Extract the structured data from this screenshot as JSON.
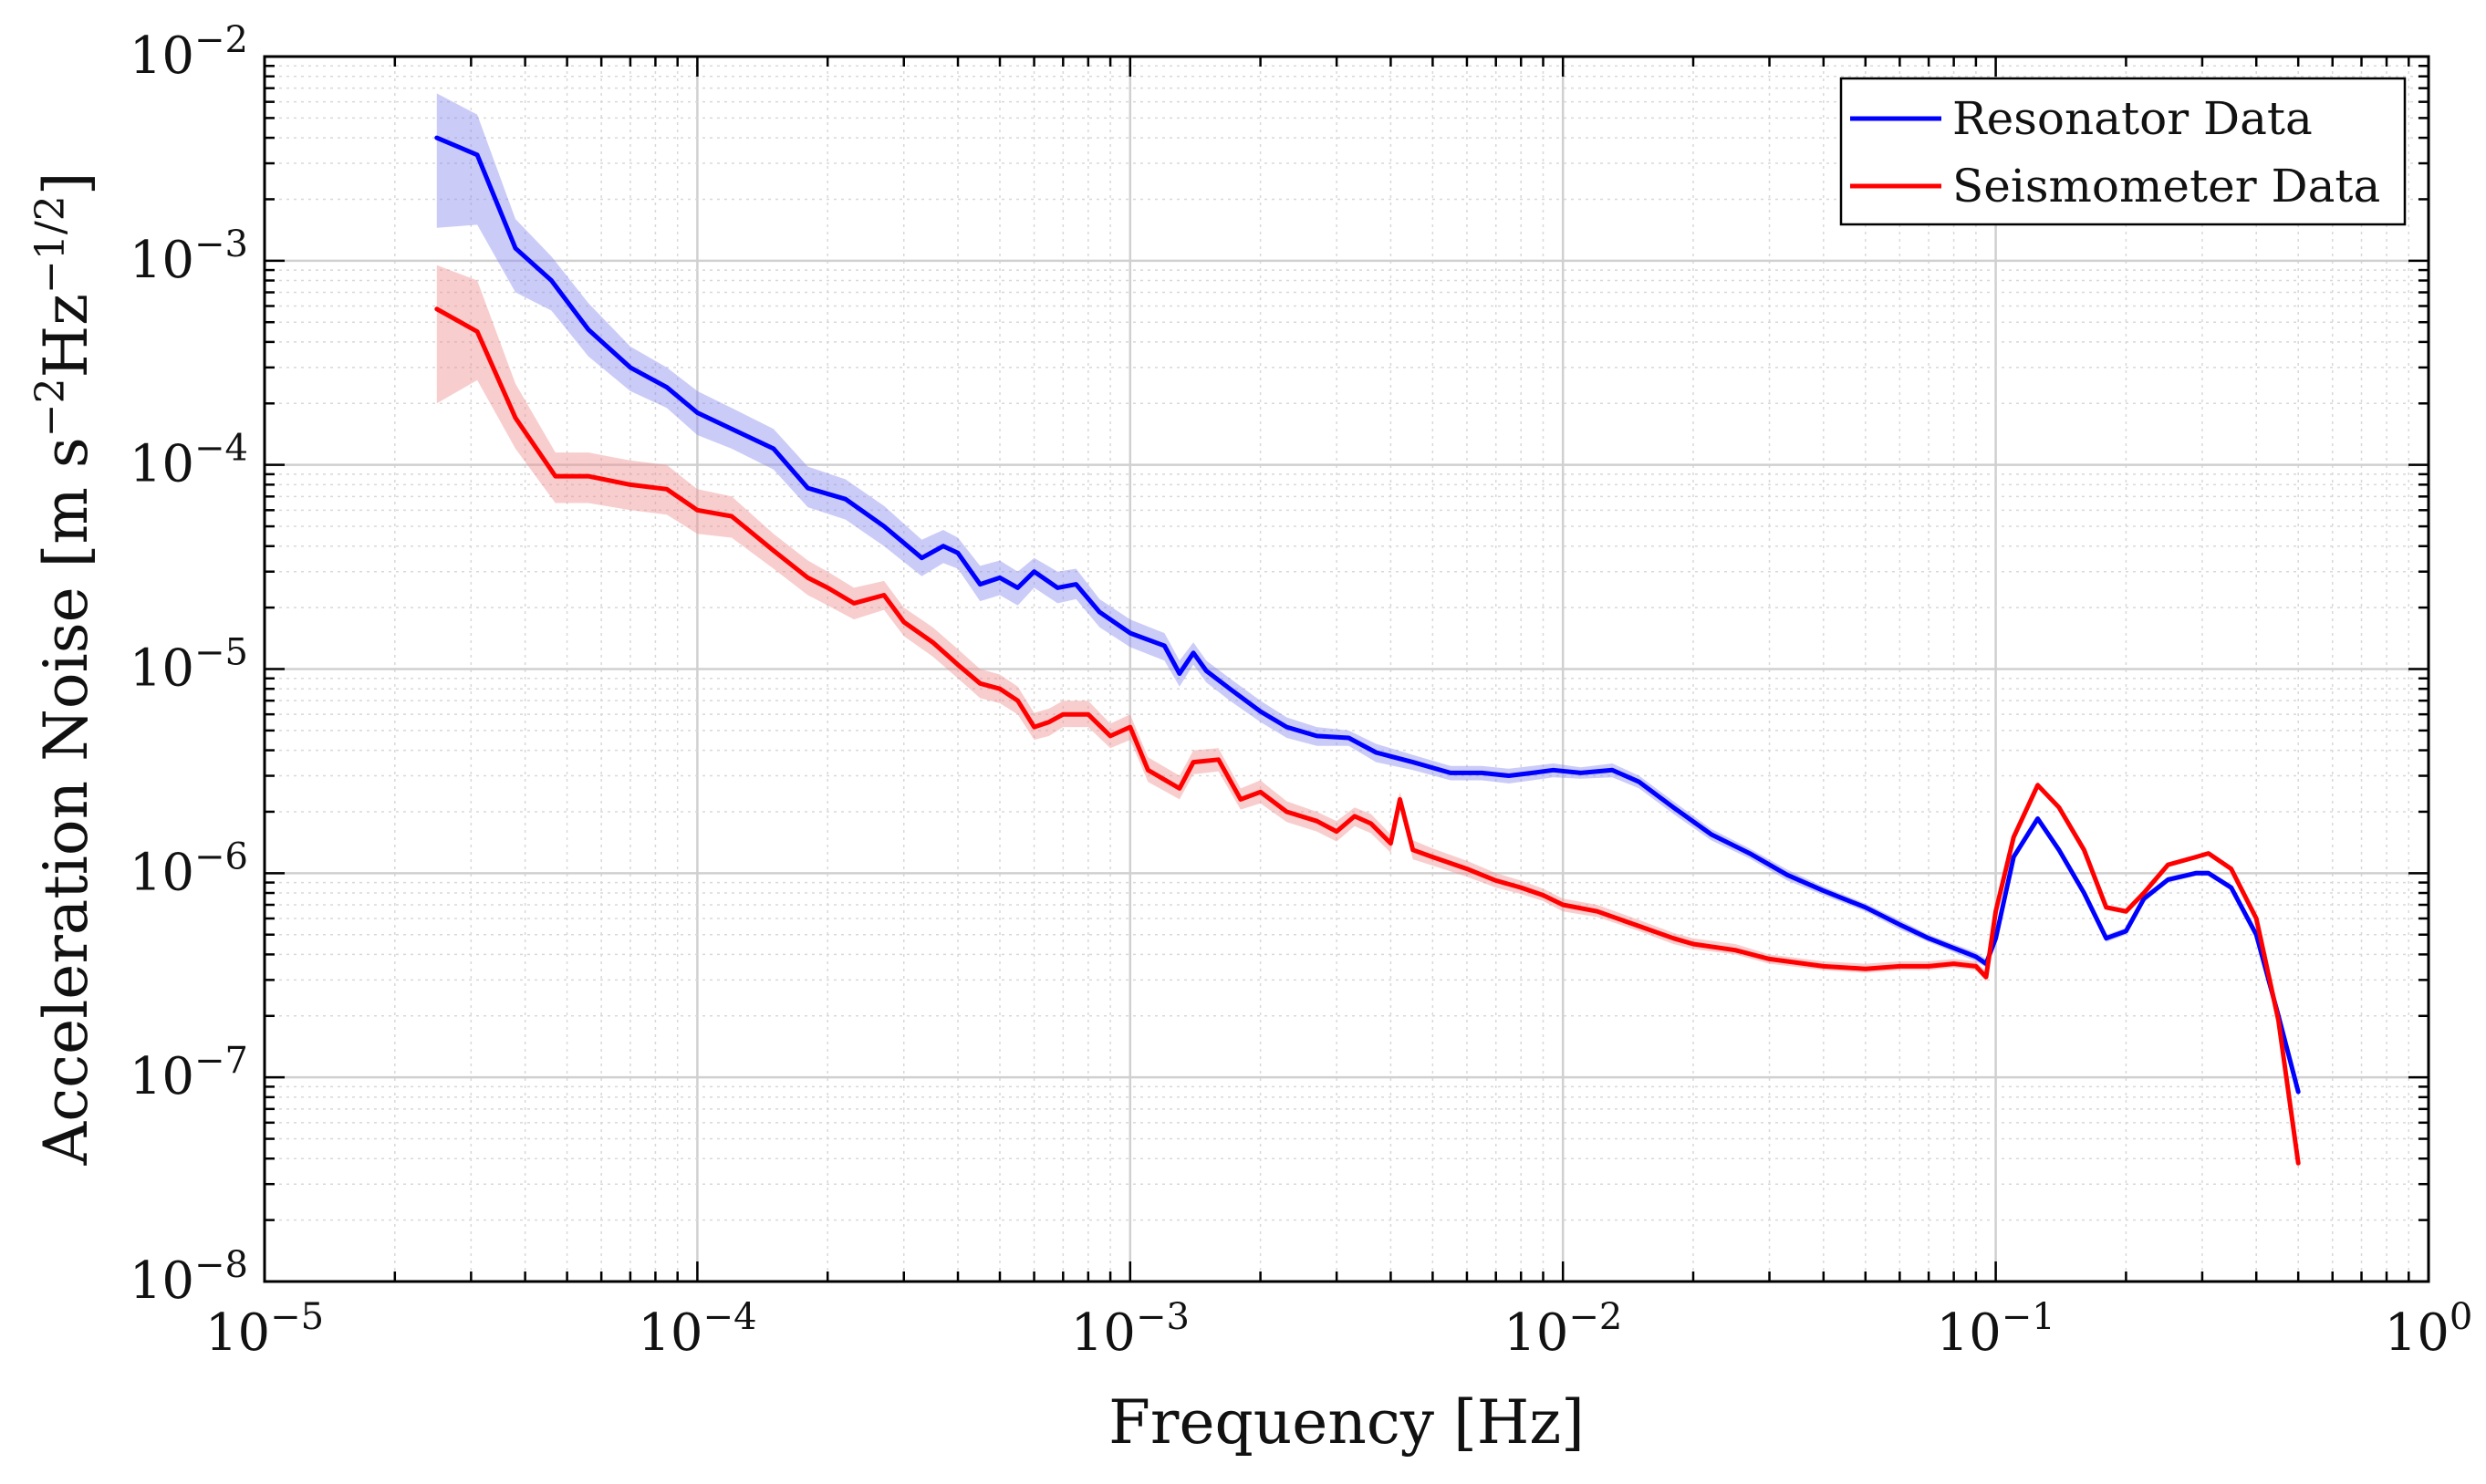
{
  "chart_data": {
    "type": "line",
    "xscale": "log",
    "yscale": "log",
    "xlim": [
      1e-05,
      1
    ],
    "ylim": [
      1e-08,
      0.01
    ],
    "xlabel": "Frequency [Hz]",
    "ylabel_main": "Acceleration Noise [m s",
    "ylabel_exp1": "−2",
    "ylabel_mid": "Hz",
    "ylabel_exp2": "−1/2",
    "ylabel_end": "]",
    "grid": true,
    "legend_position": "top-right",
    "x_ticks": [
      {
        "base": "10",
        "exp": "−5",
        "value": 1e-05
      },
      {
        "base": "10",
        "exp": "−4",
        "value": 0.0001
      },
      {
        "base": "10",
        "exp": "−3",
        "value": 0.001
      },
      {
        "base": "10",
        "exp": "−2",
        "value": 0.01
      },
      {
        "base": "10",
        "exp": "−1",
        "value": 0.1
      },
      {
        "base": "10",
        "exp": "0",
        "value": 1
      }
    ],
    "y_ticks": [
      {
        "base": "10",
        "exp": "−8",
        "value": 1e-08
      },
      {
        "base": "10",
        "exp": "−7",
        "value": 1e-07
      },
      {
        "base": "10",
        "exp": "−6",
        "value": 1e-06
      },
      {
        "base": "10",
        "exp": "−5",
        "value": 1e-05
      },
      {
        "base": "10",
        "exp": "−4",
        "value": 0.0001
      },
      {
        "base": "10",
        "exp": "−3",
        "value": 0.001
      },
      {
        "base": "10",
        "exp": "−2",
        "value": 0.01
      }
    ],
    "series": [
      {
        "name": "Resonator Data",
        "color": "#0000ff",
        "band_color": "#8c8cf0",
        "x": [
          2.5e-05,
          3.1e-05,
          3.8e-05,
          4.6e-05,
          5.6e-05,
          7e-05,
          8.5e-05,
          0.0001,
          0.00012,
          0.00015,
          0.00018,
          0.00022,
          0.00027,
          0.00033,
          0.00037,
          0.0004,
          0.00045,
          0.0005,
          0.00055,
          0.0006,
          0.00068,
          0.00075,
          0.00085,
          0.001,
          0.0012,
          0.0013,
          0.0014,
          0.0015,
          0.0017,
          0.002,
          0.0023,
          0.0027,
          0.0032,
          0.0037,
          0.0045,
          0.0055,
          0.0065,
          0.0075,
          0.0085,
          0.0095,
          0.011,
          0.013,
          0.015,
          0.018,
          0.022,
          0.027,
          0.033,
          0.04,
          0.05,
          0.06,
          0.07,
          0.08,
          0.09,
          0.095,
          0.1,
          0.11,
          0.125,
          0.14,
          0.16,
          0.18,
          0.2,
          0.22,
          0.25,
          0.29,
          0.31,
          0.35,
          0.4,
          0.45,
          0.5
        ],
        "y": [
          0.004,
          0.0033,
          0.00115,
          0.0008,
          0.00046,
          0.0003,
          0.00024,
          0.00018,
          0.00015,
          0.00012,
          7.7e-05,
          6.8e-05,
          5e-05,
          3.5e-05,
          4e-05,
          3.7e-05,
          2.6e-05,
          2.8e-05,
          2.5e-05,
          3e-05,
          2.5e-05,
          2.6e-05,
          1.9e-05,
          1.5e-05,
          1.3e-05,
          9.5e-06,
          1.2e-05,
          9.8e-06,
          8e-06,
          6.2e-06,
          5.2e-06,
          4.7e-06,
          4.6e-06,
          3.9e-06,
          3.5e-06,
          3.1e-06,
          3.1e-06,
          3e-06,
          3.1e-06,
          3.2e-06,
          3.1e-06,
          3.2e-06,
          2.8e-06,
          2.1e-06,
          1.55e-06,
          1.25e-06,
          9.8e-07,
          8.2e-07,
          6.8e-07,
          5.6e-07,
          4.8e-07,
          4.3e-07,
          3.9e-07,
          3.6e-07,
          4.8e-07,
          1.2e-06,
          1.85e-06,
          1.3e-06,
          8e-07,
          4.8e-07,
          5.2e-07,
          7.5e-07,
          9.3e-07,
          1e-06,
          1e-06,
          8.5e-07,
          5e-07,
          2e-07,
          8.5e-08
        ],
        "band_upper": [
          0.0066,
          0.0052,
          0.0016,
          0.00105,
          0.00062,
          0.00038,
          0.0003,
          0.00023,
          0.00019,
          0.00015,
          9.8e-05,
          8.5e-05,
          6.3e-05,
          4.3e-05,
          4.8e-05,
          4.4e-05,
          3.2e-05,
          3.4e-05,
          3e-05,
          3.5e-05,
          3e-05,
          3.1e-05,
          2.2e-05,
          1.75e-05,
          1.5e-05,
          1.1e-05,
          1.35e-05,
          1.1e-05,
          9e-06,
          7e-06,
          5.8e-06,
          5.2e-06,
          5e-06,
          4.3e-06,
          3.8e-06,
          3.35e-06,
          3.35e-06,
          3.25e-06,
          3.35e-06,
          3.45e-06,
          3.3e-06,
          3.45e-06,
          3e-06,
          2.25e-06,
          1.65e-06,
          1.32e-06,
          1.04e-06,
          8.6e-07,
          7.1e-07,
          5.9e-07,
          5e-07,
          4.5e-07,
          4.1e-07,
          3.8e-07,
          5e-07,
          1.25e-06,
          1.9e-06,
          1.35e-06,
          8.3e-07,
          5e-07,
          5.4e-07,
          7.8e-07,
          9.6e-07,
          1.03e-06,
          1.03e-06,
          8.8e-07,
          5.2e-07,
          2.1e-07,
          8.8e-08
        ],
        "band_lower": [
          0.00145,
          0.0015,
          0.0007,
          0.00057,
          0.00034,
          0.00023,
          0.00019,
          0.00014,
          0.00012,
          9.5e-05,
          6.2e-05,
          5.4e-05,
          4e-05,
          2.85e-05,
          3.3e-05,
          3.1e-05,
          2.15e-05,
          2.3e-05,
          2.05e-05,
          2.5e-05,
          2.1e-05,
          2.2e-05,
          1.6e-05,
          1.28e-05,
          1.1e-05,
          8.2e-06,
          1.05e-05,
          8.6e-06,
          7e-06,
          5.5e-06,
          4.6e-06,
          4.2e-06,
          4.2e-06,
          3.5e-06,
          3.2e-06,
          2.85e-06,
          2.85e-06,
          2.75e-06,
          2.85e-06,
          2.95e-06,
          2.9e-06,
          2.95e-06,
          2.6e-06,
          1.95e-06,
          1.45e-06,
          1.18e-06,
          9.2e-07,
          7.8e-07,
          6.5e-07,
          5.3e-07,
          4.6e-07,
          4.1e-07,
          3.7e-07,
          3.45e-07,
          4.6e-07,
          1.15e-06,
          1.8e-06,
          1.25e-06,
          7.7e-07,
          4.6e-07,
          5e-07,
          7.2e-07,
          9e-07,
          9.7e-07,
          9.7e-07,
          8.2e-07,
          4.8e-07,
          1.9e-07,
          8.2e-08
        ]
      },
      {
        "name": "Seismometer Data",
        "color": "#ff0000",
        "band_color": "#f09090",
        "x": [
          2.5e-05,
          3.1e-05,
          3.8e-05,
          4.7e-05,
          5.6e-05,
          7e-05,
          8.5e-05,
          0.0001,
          0.00012,
          0.00015,
          0.00018,
          0.0002,
          0.00023,
          0.00027,
          0.0003,
          0.00035,
          0.0004,
          0.00045,
          0.0005,
          0.00055,
          0.0006,
          0.00065,
          0.0007,
          0.0008,
          0.0009,
          0.001,
          0.0011,
          0.0013,
          0.0014,
          0.0016,
          0.0018,
          0.002,
          0.0023,
          0.0027,
          0.003,
          0.0033,
          0.0036,
          0.004,
          0.0042,
          0.0045,
          0.005,
          0.006,
          0.007,
          0.008,
          0.009,
          0.01,
          0.012,
          0.015,
          0.018,
          0.02,
          0.025,
          0.03,
          0.04,
          0.05,
          0.06,
          0.07,
          0.08,
          0.09,
          0.095,
          0.1,
          0.11,
          0.125,
          0.14,
          0.16,
          0.18,
          0.2,
          0.22,
          0.25,
          0.29,
          0.31,
          0.35,
          0.4,
          0.45,
          0.5
        ],
        "y": [
          0.00058,
          0.00045,
          0.00017,
          8.8e-05,
          8.8e-05,
          8e-05,
          7.6e-05,
          6e-05,
          5.6e-05,
          3.8e-05,
          2.8e-05,
          2.5e-05,
          2.1e-05,
          2.3e-05,
          1.7e-05,
          1.35e-05,
          1.05e-05,
          8.5e-06,
          8e-06,
          7e-06,
          5.2e-06,
          5.5e-06,
          6e-06,
          6e-06,
          4.7e-06,
          5.2e-06,
          3.2e-06,
          2.6e-06,
          3.5e-06,
          3.6e-06,
          2.3e-06,
          2.5e-06,
          2e-06,
          1.8e-06,
          1.6e-06,
          1.9e-06,
          1.75e-06,
          1.4e-06,
          2.3e-06,
          1.3e-06,
          1.2e-06,
          1.05e-06,
          9.2e-07,
          8.5e-07,
          7.8e-07,
          7e-07,
          6.5e-07,
          5.5e-07,
          4.8e-07,
          4.5e-07,
          4.2e-07,
          3.8e-07,
          3.5e-07,
          3.4e-07,
          3.5e-07,
          3.5e-07,
          3.6e-07,
          3.5e-07,
          3.1e-07,
          6.5e-07,
          1.5e-06,
          2.7e-06,
          2.1e-06,
          1.3e-06,
          6.8e-07,
          6.5e-07,
          8e-07,
          1.1e-06,
          1.2e-06,
          1.25e-06,
          1.05e-06,
          6e-07,
          1.9e-07,
          3.8e-08
        ],
        "band_upper": [
          0.00095,
          0.0008,
          0.00025,
          0.000115,
          0.000115,
          0.000105,
          0.0001,
          7.6e-05,
          7e-05,
          4.6e-05,
          3.4e-05,
          3e-05,
          2.5e-05,
          2.7e-05,
          2e-05,
          1.6e-05,
          1.25e-05,
          1e-05,
          9.4e-06,
          8.2e-06,
          6.1e-06,
          6.4e-06,
          7e-06,
          7e-06,
          5.4e-06,
          6e-06,
          3.7e-06,
          3e-06,
          4e-06,
          4.1e-06,
          2.6e-06,
          2.85e-06,
          2.25e-06,
          2e-06,
          1.8e-06,
          2.1e-06,
          1.95e-06,
          1.55e-06,
          2.5e-06,
          1.45e-06,
          1.32e-06,
          1.15e-06,
          1e-06,
          9.2e-07,
          8.4e-07,
          7.5e-07,
          7e-07,
          5.9e-07,
          5.1e-07,
          4.8e-07,
          4.5e-07,
          4e-07,
          3.7e-07,
          3.6e-07,
          3.7e-07,
          3.7e-07,
          3.8e-07,
          3.7e-07,
          3.3e-07,
          6.8e-07,
          1.55e-06,
          2.8e-06,
          2.15e-06,
          1.33e-06,
          7e-07,
          6.7e-07,
          8.2e-07,
          1.13e-06,
          1.23e-06,
          1.28e-06,
          1.08e-06,
          6.2e-07,
          2e-07,
          4e-08
        ],
        "band_lower": [
          0.0002,
          0.00026,
          0.00012,
          6.5e-05,
          6.5e-05,
          6e-05,
          5.7e-05,
          4.6e-05,
          4.4e-05,
          3.1e-05,
          2.3e-05,
          2.05e-05,
          1.75e-05,
          1.95e-05,
          1.45e-05,
          1.15e-05,
          9e-06,
          7.2e-06,
          6.8e-06,
          6e-06,
          4.5e-06,
          4.7e-06,
          5.2e-06,
          5.2e-06,
          4.1e-06,
          4.5e-06,
          2.8e-06,
          2.3e-06,
          3.05e-06,
          3.15e-06,
          2.05e-06,
          2.2e-06,
          1.78e-06,
          1.6e-06,
          1.43e-06,
          1.7e-06,
          1.57e-06,
          1.26e-06,
          2.1e-06,
          1.17e-06,
          1.09e-06,
          9.6e-07,
          8.5e-07,
          7.9e-07,
          7.3e-07,
          6.5e-07,
          6.1e-07,
          5.2e-07,
          4.5e-07,
          4.25e-07,
          4e-07,
          3.6e-07,
          3.35e-07,
          3.25e-07,
          3.35e-07,
          3.35e-07,
          3.45e-07,
          3.35e-07,
          2.95e-07,
          6.2e-07,
          1.45e-06,
          2.6e-06,
          2.05e-06,
          1.27e-06,
          6.6e-07,
          6.3e-07,
          7.8e-07,
          1.07e-06,
          1.17e-06,
          1.22e-06,
          1.02e-06,
          5.8e-07,
          1.8e-07,
          3.6e-08
        ]
      }
    ]
  }
}
